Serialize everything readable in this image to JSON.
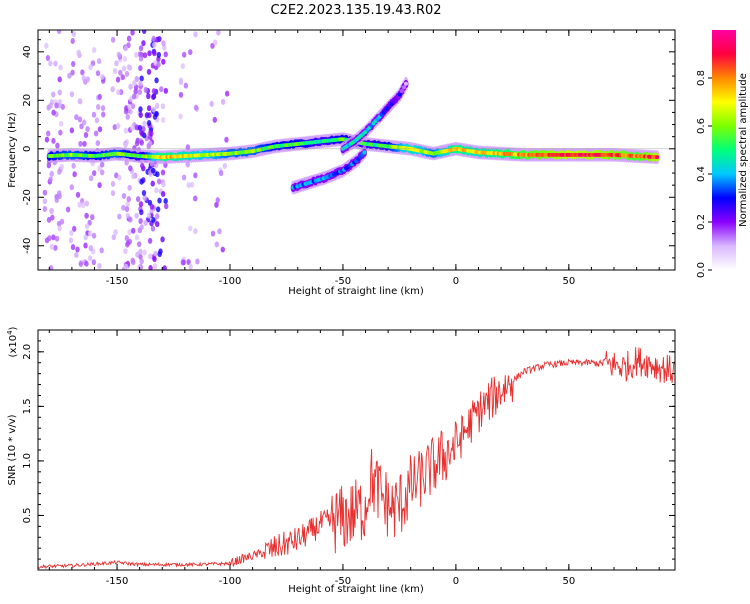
{
  "page_title": "C2E2.2023.135.19.43.R02",
  "chart_data": [
    {
      "type": "heatmap",
      "title": "C2E2.2023.135.19.43.R02",
      "xlabel": "Height of straight line (km)",
      "ylabel": "Frequency (Hz)",
      "xlim": [
        -185,
        97
      ],
      "ylim": [
        -50,
        49
      ],
      "x_ticks": [
        -150,
        -100,
        -50,
        0,
        50
      ],
      "y_ticks": [
        -40,
        -20,
        0,
        20,
        40
      ],
      "colorbar": {
        "label": "Normalized spectral amplitude",
        "range": [
          0.0,
          1.0
        ],
        "ticks": [
          0.0,
          0.2,
          0.4,
          0.6,
          0.8
        ],
        "colors": [
          "#ffffff",
          "#d9b8ff",
          "#8a00ff",
          "#0000ff",
          "#00c8ff",
          "#00ff7a",
          "#7cff00",
          "#ffff00",
          "#ff8800",
          "#ff0040",
          "#ff00a0"
        ]
      },
      "ridges": [
        {
          "name": "main-echo",
          "points": [
            [
              -180,
              -3,
              0.55
            ],
            [
              -170,
              -2.5,
              0.6
            ],
            [
              -160,
              -3,
              0.55
            ],
            [
              -150,
              -2,
              0.6
            ],
            [
              -140,
              -3,
              0.5
            ],
            [
              -130,
              -3.5,
              0.75
            ],
            [
              -120,
              -3,
              0.7
            ],
            [
              -110,
              -2.5,
              0.65
            ],
            [
              -100,
              -2,
              0.6
            ],
            [
              -90,
              -1,
              0.6
            ],
            [
              -80,
              1,
              0.55
            ],
            [
              -70,
              2,
              0.55
            ],
            [
              -60,
              3,
              0.5
            ],
            [
              -50,
              4,
              0.55
            ],
            [
              -40,
              2,
              0.5
            ],
            [
              -30,
              1,
              0.55
            ],
            [
              -20,
              0,
              0.7
            ],
            [
              -10,
              -2,
              0.6
            ],
            [
              0,
              0,
              0.75
            ],
            [
              10,
              -1.5,
              0.7
            ],
            [
              20,
              -2,
              0.75
            ],
            [
              30,
              -2.5,
              0.8
            ],
            [
              40,
              -2.5,
              0.85
            ],
            [
              50,
              -2.5,
              0.9
            ],
            [
              60,
              -2.5,
              0.88
            ],
            [
              70,
              -2.5,
              0.85
            ],
            [
              80,
              -3,
              0.8
            ],
            [
              90,
              -3.5,
              0.9
            ]
          ]
        },
        {
          "name": "rising-branch",
          "points": [
            [
              -50,
              0,
              0.4
            ],
            [
              -45,
              3,
              0.45
            ],
            [
              -40,
              7,
              0.45
            ],
            [
              -35,
              12,
              0.4
            ],
            [
              -30,
              17,
              0.3
            ],
            [
              -25,
              22,
              0.25
            ],
            [
              -22,
              27,
              0.15
            ]
          ]
        },
        {
          "name": "lower-branch",
          "points": [
            [
              -72,
              -16,
              0.35
            ],
            [
              -65,
              -14,
              0.35
            ],
            [
              -58,
              -12,
              0.35
            ],
            [
              -50,
              -9,
              0.35
            ],
            [
              -44,
              -5,
              0.35
            ],
            [
              -40,
              -1,
              0.35
            ]
          ]
        }
      ]
    },
    {
      "type": "line",
      "xlabel": "Height of straight line (km)",
      "ylabel": "SNR (10 * v/v)",
      "y_multiplier": "(x10",
      "y_exponent": "4",
      "xlim": [
        -185,
        97
      ],
      "ylim": [
        0.0,
        2.2
      ],
      "x_ticks": [
        -150,
        -100,
        -50,
        0,
        50
      ],
      "y_ticks": [
        0.5,
        1.0,
        1.5,
        2.0
      ],
      "series": [
        {
          "name": "SNR",
          "color": "#e83030",
          "x": [
            -185,
            -170,
            -150,
            -140,
            -130,
            -115,
            -100,
            -95,
            -90,
            -85,
            -80,
            -75,
            -70,
            -65,
            -60,
            -55,
            -50,
            -45,
            -40,
            -38,
            -35,
            -32,
            -28,
            -25,
            -20,
            -15,
            -10,
            -5,
            0,
            5,
            10,
            15,
            20,
            25,
            30,
            40,
            50,
            60,
            70,
            75,
            80,
            85,
            90,
            97
          ],
          "y": [
            0.03,
            0.04,
            0.07,
            0.05,
            0.05,
            0.05,
            0.06,
            0.1,
            0.13,
            0.16,
            0.2,
            0.24,
            0.28,
            0.34,
            0.42,
            0.45,
            0.47,
            0.52,
            0.58,
            0.85,
            0.75,
            0.65,
            0.55,
            0.6,
            0.75,
            0.85,
            0.95,
            1.05,
            1.15,
            1.3,
            1.45,
            1.55,
            1.65,
            1.73,
            1.82,
            1.88,
            1.9,
            1.9,
            1.88,
            1.86,
            1.92,
            1.9,
            1.86,
            1.82
          ]
        }
      ]
    }
  ],
  "colors": {
    "grid_frame": "#000000",
    "line": "#e83030"
  }
}
